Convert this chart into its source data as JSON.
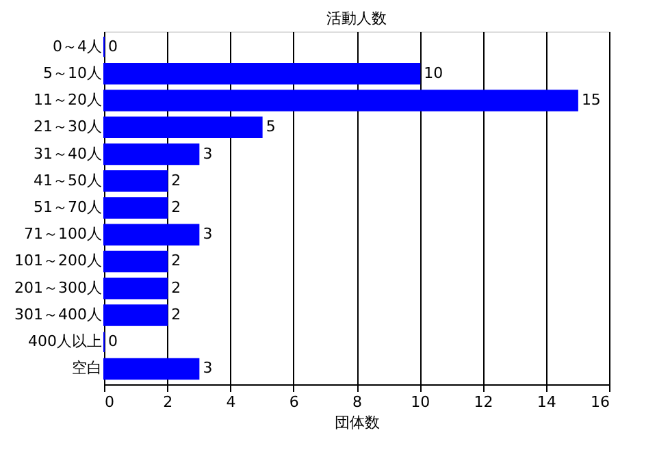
{
  "chart_data": {
    "type": "bar",
    "orientation": "horizontal",
    "title": "活動人数",
    "xlabel": "団体数",
    "categories": [
      "0～4人",
      "5～10人",
      "11～20人",
      "21～30人",
      "31～40人",
      "41～50人",
      "51～70人",
      "71～100人",
      "101～200人",
      "201～300人",
      "301～400人",
      "400人以上",
      "空白"
    ],
    "values": [
      0,
      10,
      15,
      5,
      3,
      2,
      2,
      3,
      2,
      2,
      2,
      0,
      3
    ],
    "color": "#0000ff",
    "xlim": [
      0,
      16
    ],
    "xticks": [
      0,
      2,
      4,
      6,
      8,
      10,
      12,
      14,
      16
    ],
    "grid": "x",
    "data_labels": true
  }
}
